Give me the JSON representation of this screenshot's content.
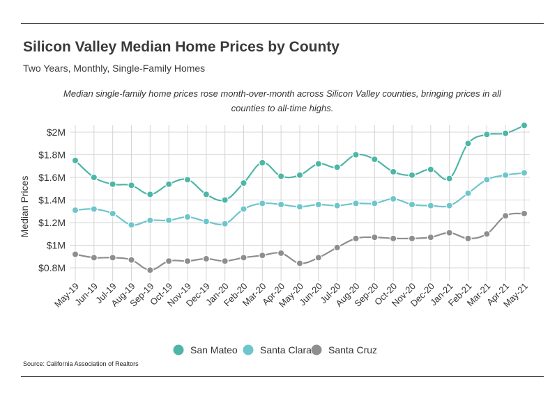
{
  "title": "Silicon Valley Median Home Prices by County",
  "subtitle": "Two Years, Monthly, Single-Family Homes",
  "caption": "Median single-family home prices rose month-over-month across Silicon Valley counties, bringing prices in all counties to all-time highs.",
  "source": "Source:  California Association of Realtors",
  "chart_data": {
    "type": "line",
    "ylabel": "Median Prices",
    "xlabel": "",
    "ylim": [
      0.7,
      2.05
    ],
    "y_ticks": [
      0.8,
      1.0,
      1.2,
      1.4,
      1.6,
      1.8,
      2.0
    ],
    "y_tick_labels": [
      "$0.8M",
      "$1M",
      "$1.2M",
      "$1.4M",
      "$1.6M",
      "$1.8M",
      "$2M"
    ],
    "grid": true,
    "legend_position": "bottom",
    "categories": [
      "May-19",
      "Jun-19",
      "Jul-19",
      "Aug-19",
      "Sep-19",
      "Oct-19",
      "Nov-19",
      "Dec-19",
      "Jan-20",
      "Feb-20",
      "Mar-20",
      "Apr-20",
      "May-20",
      "Jun-20",
      "Jul-20",
      "Aug-20",
      "Sep-20",
      "Oct-20",
      "Nov-20",
      "Dec-20",
      "Jan-21",
      "Feb-21",
      "Mar-21",
      "Apr-21",
      "May-21"
    ],
    "series": [
      {
        "name": "San Mateo",
        "color": "#4db6a6",
        "values": [
          1.75,
          1.6,
          1.54,
          1.53,
          1.45,
          1.54,
          1.58,
          1.45,
          1.4,
          1.55,
          1.73,
          1.61,
          1.62,
          1.72,
          1.69,
          1.8,
          1.76,
          1.65,
          1.62,
          1.67,
          1.59,
          1.9,
          1.98,
          1.99,
          2.06
        ]
      },
      {
        "name": "Santa Clara",
        "color": "#6ec6cb",
        "values": [
          1.31,
          1.32,
          1.28,
          1.18,
          1.22,
          1.22,
          1.25,
          1.21,
          1.19,
          1.32,
          1.37,
          1.36,
          1.34,
          1.36,
          1.35,
          1.37,
          1.37,
          1.41,
          1.36,
          1.35,
          1.35,
          1.46,
          1.58,
          1.62,
          1.64
        ]
      },
      {
        "name": "Santa Cruz",
        "color": "#8e8e8e",
        "values": [
          0.92,
          0.89,
          0.89,
          0.87,
          0.78,
          0.86,
          0.86,
          0.88,
          0.86,
          0.89,
          0.91,
          0.93,
          0.84,
          0.89,
          0.98,
          1.06,
          1.07,
          1.06,
          1.06,
          1.07,
          1.11,
          1.06,
          1.1,
          1.26,
          1.28
        ]
      }
    ]
  }
}
